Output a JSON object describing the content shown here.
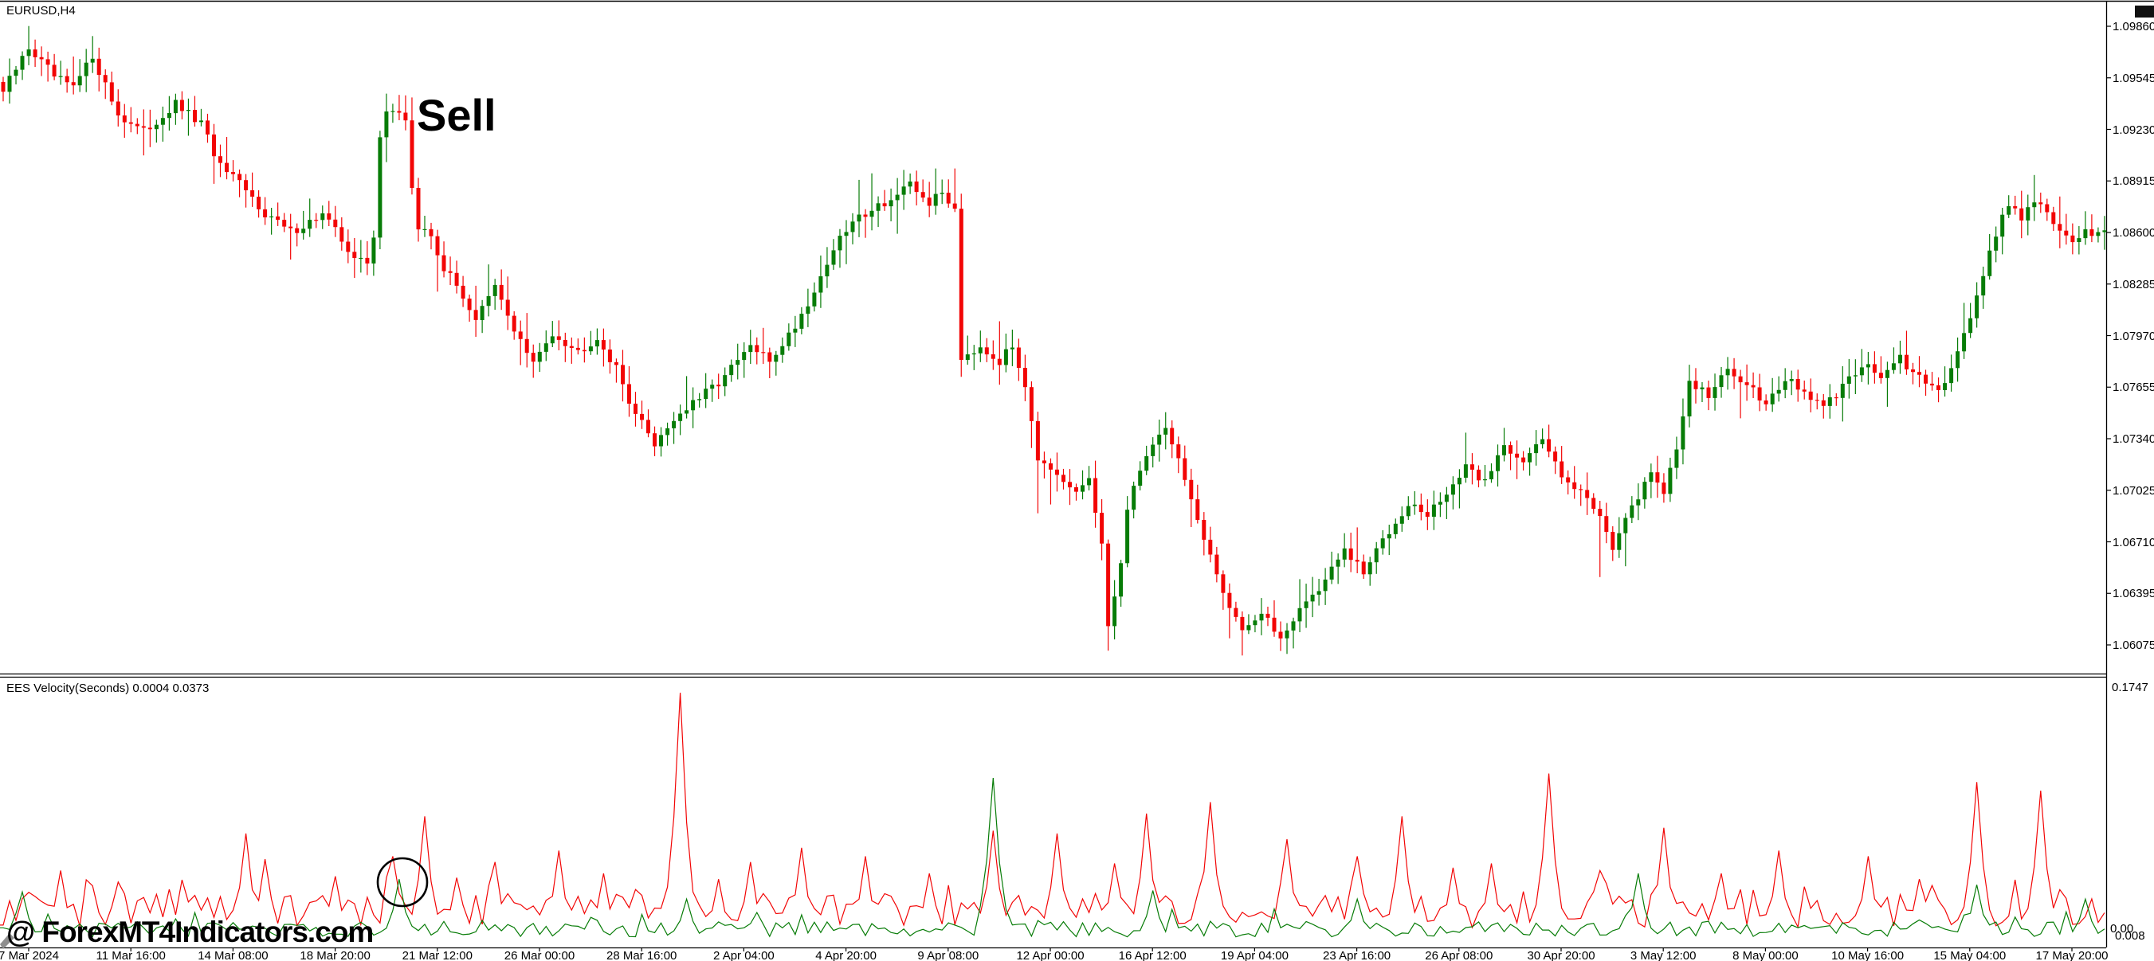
{
  "window": {
    "symbol_label": "EURUSD,H4"
  },
  "annotations": {
    "sell": "Sell",
    "watermark": "@ ForexMT4Indicators.com"
  },
  "price_axis": {
    "labels": [
      "1.09860",
      "1.09545",
      "1.09230",
      "1.08915",
      "1.08600",
      "1.08285",
      "1.07970",
      "1.07655",
      "1.07340",
      "1.07025",
      "1.06710",
      "1.06395",
      "1.06075"
    ]
  },
  "time_axis": {
    "labels": [
      "7 Mar 2024",
      "11 Mar 16:00",
      "14 Mar 08:00",
      "18 Mar 20:00",
      "21 Mar 12:00",
      "26 Mar 00:00",
      "28 Mar 16:00",
      "2 Apr 04:00",
      "4 Apr 20:00",
      "9 Apr 08:00",
      "12 Apr 00:00",
      "16 Apr 12:00",
      "19 Apr 04:00",
      "23 Apr 16:00",
      "26 Apr 08:00",
      "30 Apr 20:00",
      "3 May 12:00",
      "8 May 00:00",
      "10 May 16:00",
      "15 May 04:00",
      "17 May 20:00"
    ]
  },
  "indicator": {
    "title": "EES Velocity(Seconds) 0.0004 0.0373",
    "axis_max_label": "0.1747",
    "axis_min_labels": [
      "0.00",
      "0.008"
    ]
  },
  "chart_data": {
    "type": "candlestick",
    "title": "EURUSD H4 candlestick chart with EES Velocity(Seconds) indicator and Sell annotation",
    "symbol": "EURUSD",
    "timeframe": "H4",
    "price_axis_range": {
      "top": 1.0986,
      "bottom": 1.06075
    },
    "indicator_axis_range": {
      "top": 0.1747,
      "bottom": 0.0
    },
    "bars": 330,
    "close_anchors": [
      [
        0,
        1.0946
      ],
      [
        4,
        1.0973
      ],
      [
        8,
        1.0955
      ],
      [
        11,
        1.0948
      ],
      [
        14,
        1.0968
      ],
      [
        18,
        1.0932
      ],
      [
        22,
        1.0921
      ],
      [
        27,
        1.0938
      ],
      [
        31,
        1.0926
      ],
      [
        34,
        1.09
      ],
      [
        37,
        1.0889
      ],
      [
        41,
        1.0872
      ],
      [
        45,
        1.086
      ],
      [
        50,
        1.0871
      ],
      [
        55,
        1.0845
      ],
      [
        57,
        1.084
      ],
      [
        58,
        1.0856
      ],
      [
        59,
        1.092
      ],
      [
        60,
        1.0936
      ],
      [
        62,
        1.0931
      ],
      [
        63,
        1.0929
      ],
      [
        64,
        1.0888
      ],
      [
        65,
        1.0862
      ],
      [
        67,
        1.0858
      ],
      [
        69,
        1.0838
      ],
      [
        72,
        1.0821
      ],
      [
        74,
        1.0807
      ],
      [
        77,
        1.0826
      ],
      [
        80,
        1.0801
      ],
      [
        83,
        1.0779
      ],
      [
        86,
        1.0799
      ],
      [
        90,
        1.0787
      ],
      [
        93,
        1.0796
      ],
      [
        96,
        1.0776
      ],
      [
        99,
        1.0749
      ],
      [
        102,
        1.0731
      ],
      [
        105,
        1.0746
      ],
      [
        109,
        1.0758
      ],
      [
        113,
        1.0772
      ],
      [
        117,
        1.079
      ],
      [
        120,
        1.0781
      ],
      [
        124,
        1.0803
      ],
      [
        127,
        1.0824
      ],
      [
        130,
        1.085
      ],
      [
        133,
        1.0866
      ],
      [
        136,
        1.0875
      ],
      [
        139,
        1.088
      ],
      [
        142,
        1.0888
      ],
      [
        145,
        1.0878
      ],
      [
        147,
        1.0884
      ],
      [
        149,
        1.0875
      ],
      [
        150,
        1.0784
      ],
      [
        153,
        1.0791
      ],
      [
        156,
        1.0781
      ],
      [
        158,
        1.079
      ],
      [
        160,
        1.0768
      ],
      [
        161,
        1.0746
      ],
      [
        162,
        1.0722
      ],
      [
        164,
        1.0712
      ],
      [
        166,
        1.0706
      ],
      [
        168,
        1.07
      ],
      [
        170,
        1.071
      ],
      [
        172,
        1.0668
      ],
      [
        173,
        1.0616
      ],
      [
        175,
        1.066
      ],
      [
        176,
        1.069
      ],
      [
        178,
        1.0716
      ],
      [
        180,
        1.073
      ],
      [
        182,
        1.0742
      ],
      [
        185,
        1.071
      ],
      [
        188,
        1.067
      ],
      [
        191,
        1.064
      ],
      [
        194,
        1.0618
      ],
      [
        197,
        1.0626
      ],
      [
        200,
        1.0612
      ],
      [
        203,
        1.063
      ],
      [
        206,
        1.0642
      ],
      [
        210,
        1.0665
      ],
      [
        213,
        1.0651
      ],
      [
        216,
        1.0672
      ],
      [
        220,
        1.0695
      ],
      [
        223,
        1.0686
      ],
      [
        226,
        1.0701
      ],
      [
        229,
        1.0715
      ],
      [
        232,
        1.0708
      ],
      [
        235,
        1.073
      ],
      [
        238,
        1.0721
      ],
      [
        241,
        1.0732
      ],
      [
        244,
        1.0713
      ],
      [
        247,
        1.0701
      ],
      [
        250,
        1.0688
      ],
      [
        252,
        1.0668
      ],
      [
        255,
        1.069
      ],
      [
        258,
        1.0715
      ],
      [
        260,
        1.0701
      ],
      [
        262,
        1.0726
      ],
      [
        264,
        1.077
      ],
      [
        267,
        1.076
      ],
      [
        270,
        1.0775
      ],
      [
        273,
        1.0768
      ],
      [
        276,
        1.0756
      ],
      [
        279,
        1.077
      ],
      [
        282,
        1.0762
      ],
      [
        285,
        1.0752
      ],
      [
        288,
        1.0765
      ],
      [
        291,
        1.078
      ],
      [
        294,
        1.0772
      ],
      [
        297,
        1.0782
      ],
      [
        300,
        1.077
      ],
      [
        303,
        1.0762
      ],
      [
        306,
        1.0788
      ],
      [
        309,
        1.082
      ],
      [
        312,
        1.086
      ],
      [
        314,
        1.0878
      ],
      [
        316,
        1.087
      ],
      [
        318,
        1.088
      ],
      [
        320,
        1.0872
      ],
      [
        322,
        1.086
      ],
      [
        324,
        1.0852
      ],
      [
        326,
        1.0862
      ],
      [
        328,
        1.0858
      ],
      [
        329,
        1.0862
      ]
    ],
    "high_overrides": [
      [
        4,
        1.0986
      ],
      [
        14,
        1.098
      ],
      [
        60,
        1.0941
      ],
      [
        146,
        1.0899
      ],
      [
        318,
        1.0895
      ]
    ],
    "low_overrides": [
      [
        55,
        1.0832
      ],
      [
        102,
        1.0724
      ],
      [
        162,
        1.0688
      ],
      [
        173,
        1.0604
      ],
      [
        194,
        1.0601
      ],
      [
        201,
        1.0602
      ],
      [
        250,
        1.0649
      ]
    ],
    "indicator_panel": {
      "type": "line",
      "name": "EES Velocity(Seconds)",
      "current_values": [
        0.0004,
        0.0373
      ],
      "series": [
        {
          "name": "velocity-red",
          "color": "#f20505",
          "base_range": [
            0.01,
            0.034
          ],
          "spikes": [
            [
              9,
              0.05
            ],
            [
              18,
              0.042
            ],
            [
              38,
              0.076
            ],
            [
              41,
              0.058
            ],
            [
              52,
              0.046
            ],
            [
              61,
              0.06
            ],
            [
              66,
              0.088
            ],
            [
              71,
              0.045
            ],
            [
              77,
              0.056
            ],
            [
              87,
              0.064
            ],
            [
              94,
              0.048
            ],
            [
              106,
              0.1747
            ],
            [
              112,
              0.044
            ],
            [
              117,
              0.056
            ],
            [
              125,
              0.066
            ],
            [
              135,
              0.06
            ],
            [
              145,
              0.048
            ],
            [
              155,
              0.078
            ],
            [
              165,
              0.076
            ],
            [
              174,
              0.055
            ],
            [
              179,
              0.09
            ],
            [
              189,
              0.098
            ],
            [
              201,
              0.072
            ],
            [
              212,
              0.06
            ],
            [
              219,
              0.088
            ],
            [
              227,
              0.052
            ],
            [
              233,
              0.055
            ],
            [
              242,
              0.118
            ],
            [
              250,
              0.05
            ],
            [
              260,
              0.08
            ],
            [
              269,
              0.048
            ],
            [
              278,
              0.064
            ],
            [
              292,
              0.06
            ],
            [
              300,
              0.044
            ],
            [
              309,
              0.112
            ],
            [
              319,
              0.106
            ]
          ]
        },
        {
          "name": "velocity-green",
          "color": "#077c07",
          "base_range": [
            0.0035,
            0.0145
          ],
          "spikes": [
            [
              3,
              0.035
            ],
            [
              62,
              0.044
            ],
            [
              107,
              0.03
            ],
            [
              155,
              0.115
            ],
            [
              180,
              0.036
            ],
            [
              212,
              0.03
            ],
            [
              256,
              0.048
            ],
            [
              309,
              0.04
            ],
            [
              326,
              0.03
            ]
          ]
        }
      ]
    },
    "colors": {
      "bull": "#077c07",
      "bear": "#f20505",
      "background": "#ffffff",
      "frame": "#000000"
    },
    "layout_hints": {
      "axis_x": 2643,
      "price_top_y": 33,
      "price_bottom_y": 810,
      "bar_x0": 4,
      "bar_dx": 8.015,
      "body_width": 5,
      "tick_x0": 36,
      "tick_dx": 128.2,
      "divider_y": [
        846,
        850
      ],
      "bottom_axis_y": 1190,
      "vel_zero_y": 1183,
      "vel_max_y": 870,
      "circle_annotation": {
        "cx": 505,
        "cy": 1108,
        "rx": 31,
        "ry": 30
      },
      "grid": false,
      "legend": false
    },
    "rng_seed": 987654321
  }
}
